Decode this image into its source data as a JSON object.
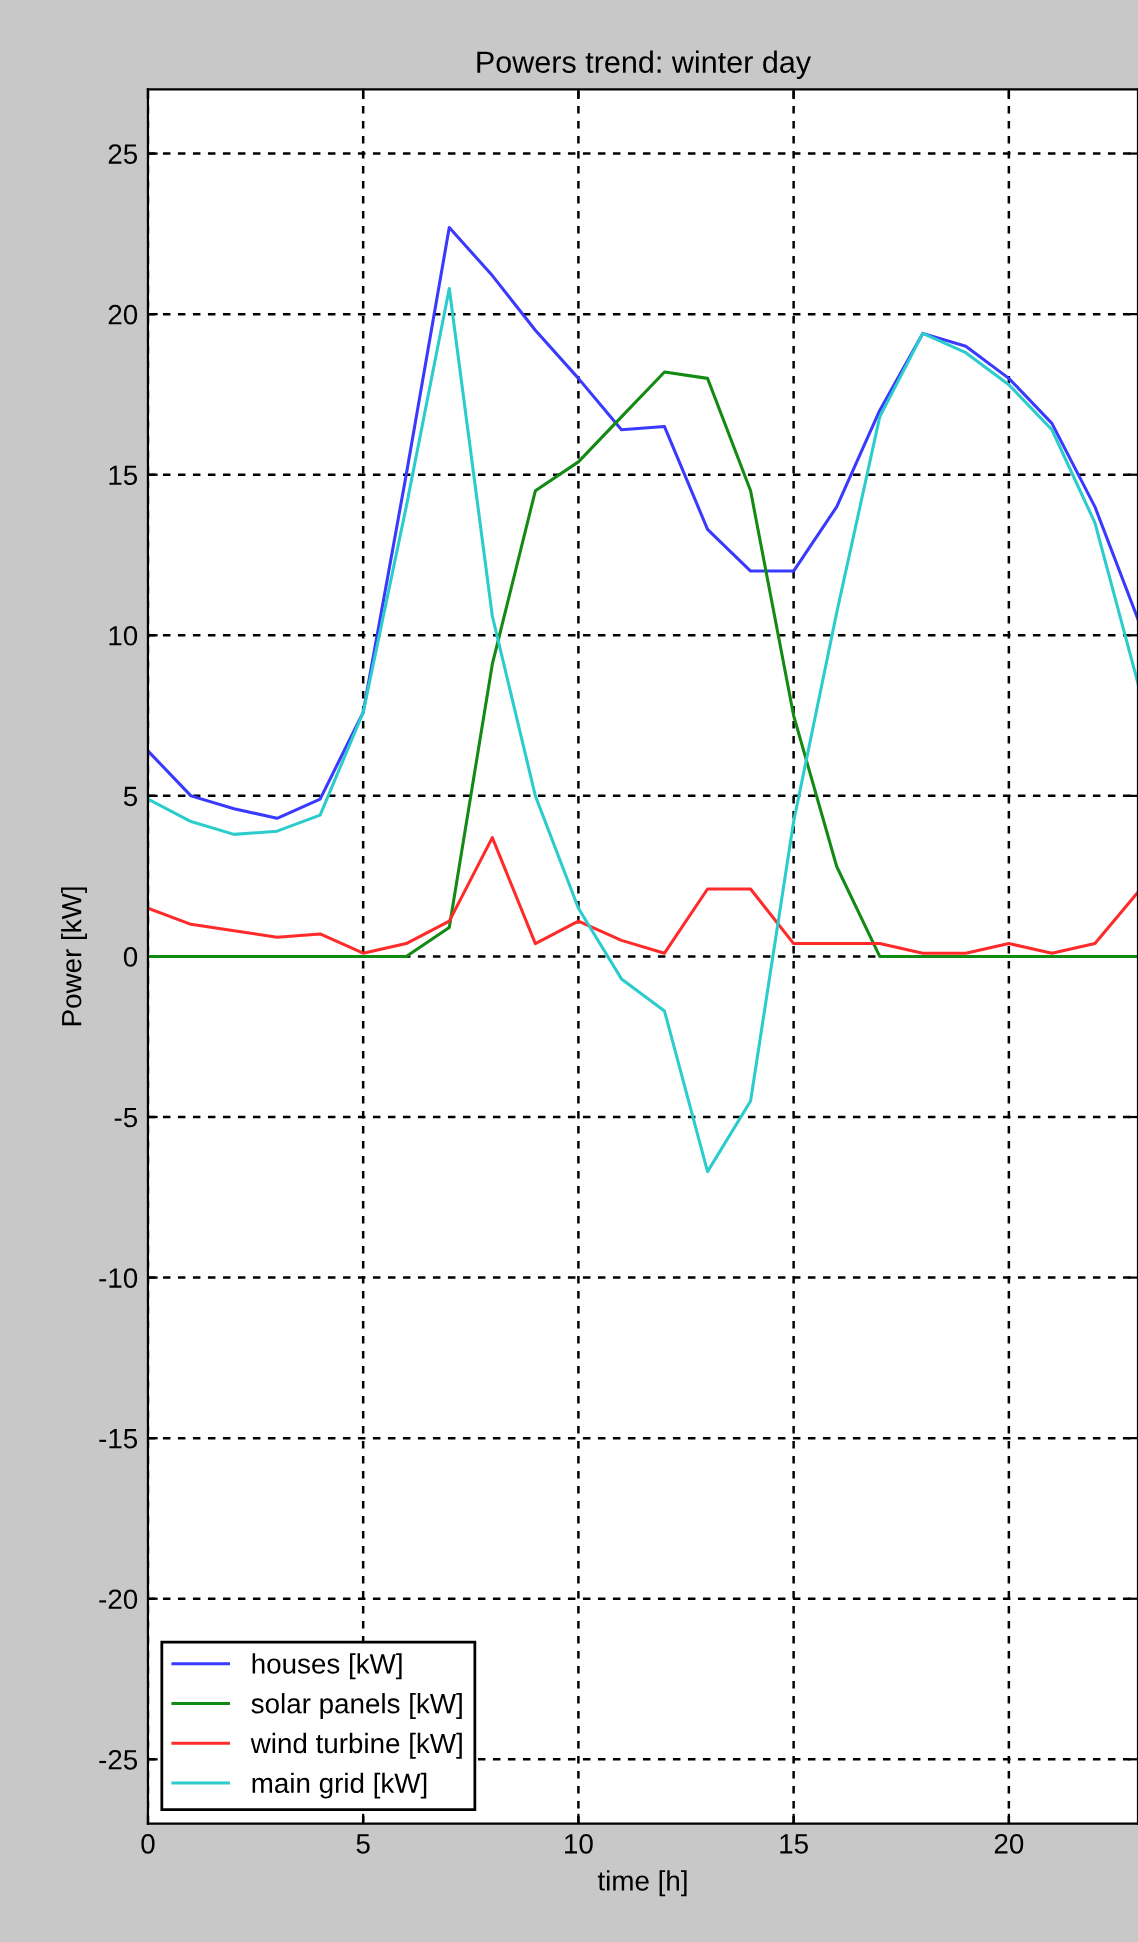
{
  "chart_data": {
    "type": "line",
    "title": "Powers trend: winter day",
    "xlabel": "time [h]",
    "ylabel": "Power [kW]",
    "x": [
      0,
      1,
      2,
      3,
      4,
      5,
      6,
      7,
      8,
      9,
      10,
      11,
      12,
      13,
      14,
      15,
      16,
      17,
      18,
      19,
      20,
      21,
      22,
      23
    ],
    "series": [
      {
        "name": "houses [kW]",
        "color": "#3a3aff",
        "values": [
          6.4,
          5.0,
          4.6,
          4.3,
          4.9,
          7.6,
          15.0,
          22.7,
          21.2,
          19.5,
          18.0,
          16.4,
          16.5,
          13.3,
          12.0,
          12.0,
          14.0,
          17.0,
          19.4,
          19.0,
          18.0,
          16.6,
          14.0,
          10.5
        ]
      },
      {
        "name": "solar panels [kW]",
        "color": "#138a13",
        "values": [
          0,
          0,
          0,
          0,
          0,
          0,
          0,
          0.9,
          9.1,
          14.5,
          15.4,
          16.8,
          18.2,
          18.0,
          14.5,
          7.5,
          2.8,
          0,
          0,
          0,
          0,
          0,
          0,
          0
        ]
      },
      {
        "name": "wind turbine [kW]",
        "color": "#ff2b2b",
        "values": [
          1.5,
          1.0,
          0.8,
          0.6,
          0.7,
          0.1,
          0.4,
          1.1,
          3.7,
          0.4,
          1.1,
          0.5,
          0.1,
          2.1,
          2.1,
          0.4,
          0.4,
          0.4,
          0.1,
          0.1,
          0.4,
          0.1,
          0.4,
          2.0
        ]
      },
      {
        "name": "main grid [kW]",
        "color": "#2ccccc",
        "values": [
          4.9,
          4.2,
          3.8,
          3.9,
          4.4,
          7.6,
          14.0,
          20.8,
          10.6,
          5.0,
          1.5,
          -0.7,
          -1.7,
          -6.7,
          -4.5,
          4.2,
          10.7,
          16.8,
          19.4,
          18.8,
          17.8,
          16.4,
          13.5,
          8.5
        ]
      }
    ],
    "xlim": [
      0,
      23
    ],
    "ylim": [
      -27,
      27
    ],
    "xticks": [
      0,
      5,
      10,
      15,
      20
    ],
    "yticks": [
      -25,
      -20,
      -15,
      -10,
      -5,
      0,
      5,
      10,
      15,
      20,
      25
    ],
    "grid": true,
    "legend": "bottom left",
    "line_style": "solid",
    "marker": "none"
  }
}
